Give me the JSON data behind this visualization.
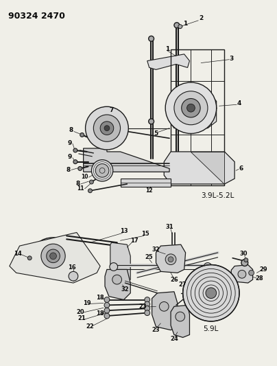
{
  "title_code": "90324 2470",
  "bg_color": "#f0efe8",
  "line_color": "#1a1a1a",
  "label_color": "#0a0a0a",
  "diagram1_label": "3.9L-5.2L",
  "diagram2_label": "5.9L",
  "figsize": [
    4.04,
    5.33
  ],
  "dpi": 100
}
